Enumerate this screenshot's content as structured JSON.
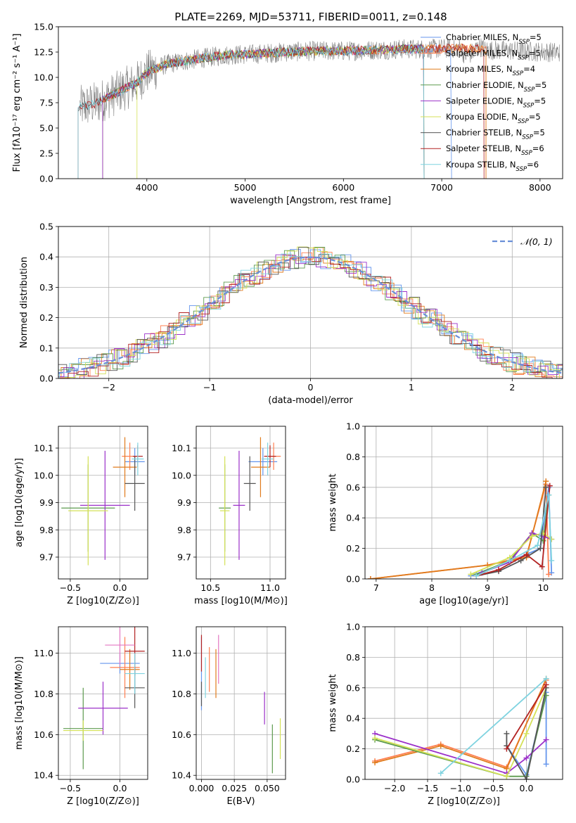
{
  "figure": {
    "title": "PLATE=2269, MJD=53711, FIBERID=0011, z=0.148"
  },
  "colors": {
    "models": [
      "#6495ed",
      "#ff7f50",
      "#e07b1c",
      "#5d9b4f",
      "#9b30c9",
      "#d4e157",
      "#555555",
      "#b22222",
      "#7fd3e0"
    ],
    "data_gray": "#808080",
    "gaussian": "#6a8fd8",
    "grid": "#b0b0b0",
    "extra_pink": "#e377c2"
  },
  "chart_data": [
    {
      "id": "spectrum",
      "type": "line",
      "title": "PLATE=2269, MJD=53711, FIBERID=0011, z=0.148",
      "xlabel": "wavelength [Angstrom, rest frame]",
      "ylabel": "Flux [fλ10⁻¹⁷ erg cm⁻² s⁻¹ A⁻¹]",
      "xlim": [
        3100,
        8230
      ],
      "ylim": [
        0,
        15
      ],
      "xticks": [
        4000,
        5000,
        6000,
        7000,
        8000
      ],
      "yticks": [
        0.0,
        2.5,
        5.0,
        7.5,
        10.0,
        12.5,
        15.0
      ],
      "legend_position": "top-right",
      "legend": [
        "Chabrier MILES, N_SSP=5",
        "Salpeter MILES, N_SSP=5",
        "Kroupa MILES, N_SSP=4",
        "Chabrier ELODIE, N_SSP=5",
        "Salpeter ELODIE, N_SSP=5",
        "Kroupa ELODIE, N_SSP=5",
        "Chabrier STELIB, N_SSP=5",
        "Salpeter STELIB, N_SSP=6",
        "Kroupa STELIB, N_SSP=6"
      ],
      "continuum": {
        "x": [
          3300,
          3500,
          3700,
          3900,
          4000,
          4200,
          4500,
          4800,
          5100,
          5400,
          5700,
          6000,
          6300,
          6600,
          6900,
          7200,
          7500,
          7800,
          8100
        ],
        "y": [
          7.0,
          7.5,
          8.5,
          9.5,
          10.5,
          11.3,
          11.8,
          12.2,
          12.3,
          12.5,
          12.6,
          12.6,
          12.7,
          12.8,
          12.8,
          12.9,
          12.7,
          12.6,
          12.5
        ]
      },
      "model_ranges": [
        [
          3550,
          7100
        ],
        [
          3550,
          7450
        ],
        [
          3550,
          7450
        ],
        [
          3550,
          6820
        ],
        [
          3550,
          6820
        ],
        [
          3900,
          6820
        ],
        [
          3300,
          6820
        ],
        [
          3300,
          7430
        ],
        [
          3300,
          6820
        ]
      ]
    },
    {
      "id": "residuals",
      "type": "line",
      "xlabel": "(data-model)/error",
      "ylabel": "Normed distribution",
      "xlim": [
        -2.5,
        2.5
      ],
      "ylim": [
        0,
        0.5
      ],
      "xticks": [
        -2,
        -1,
        0,
        1,
        2
      ],
      "yticks": [
        0.0,
        0.1,
        0.2,
        0.3,
        0.4,
        0.5
      ],
      "legend": [
        "𝒩(0, 1)"
      ],
      "legend_position": "top-right",
      "series_note": "step histograms for the nine models"
    },
    {
      "id": "age_vs_Z",
      "type": "scatter",
      "xlabel": "Z [log10(Z/Z⊙)]",
      "ylabel": "age  [log10(age/yr)]",
      "xlim": [
        -0.62,
        0.28
      ],
      "ylim": [
        9.62,
        10.18
      ],
      "xticks": [
        -0.5,
        0.0
      ],
      "yticks": [
        9.7,
        9.8,
        9.9,
        10.0,
        10.1
      ],
      "points": [
        {
          "x": 0.15,
          "y": 10.05,
          "xerr": 0.1,
          "yerr": 0.05
        },
        {
          "x": 0.1,
          "y": 10.07,
          "xerr": 0.08,
          "yerr": 0.05
        },
        {
          "x": 0.05,
          "y": 10.03,
          "xerr": 0.12,
          "yerr": 0.11
        },
        {
          "x": -0.32,
          "y": 9.88,
          "xerr": 0.27,
          "yerr": 0.16
        },
        {
          "x": -0.15,
          "y": 9.89,
          "xerr": 0.25,
          "yerr": 0.2
        },
        {
          "x": -0.32,
          "y": 9.87,
          "xerr": 0.2,
          "yerr": 0.2
        },
        {
          "x": 0.15,
          "y": 9.97,
          "xerr": 0.1,
          "yerr": 0.1
        },
        {
          "x": 0.18,
          "y": 10.07,
          "xerr": 0.05,
          "yerr": 0.04
        },
        {
          "x": 0.18,
          "y": 10.06,
          "xerr": 0.06,
          "yerr": 0.06
        }
      ]
    },
    {
      "id": "age_vs_mass",
      "type": "scatter",
      "xlabel": "mass [log10(M/M⊙)]",
      "ylabel": "",
      "xlim": [
        10.38,
        11.13
      ],
      "ylim": [
        9.62,
        10.18
      ],
      "xticks": [
        10.5,
        11.0
      ],
      "yticks": [
        9.7,
        9.8,
        9.9,
        10.0,
        10.1
      ],
      "points": [
        {
          "x": 10.94,
          "y": 10.05,
          "xerr": 0.12,
          "yerr": 0.05
        },
        {
          "x": 11.03,
          "y": 10.07,
          "xerr": 0.06,
          "yerr": 0.05
        },
        {
          "x": 10.92,
          "y": 10.03,
          "xerr": 0.08,
          "yerr": 0.11
        },
        {
          "x": 10.62,
          "y": 9.88,
          "xerr": 0.05,
          "yerr": 0.16
        },
        {
          "x": 10.74,
          "y": 9.89,
          "xerr": 0.05,
          "yerr": 0.2
        },
        {
          "x": 10.62,
          "y": 9.87,
          "xerr": 0.04,
          "yerr": 0.2
        },
        {
          "x": 10.83,
          "y": 9.97,
          "xerr": 0.05,
          "yerr": 0.1
        },
        {
          "x": 11.0,
          "y": 10.07,
          "xerr": 0.05,
          "yerr": 0.04
        },
        {
          "x": 10.98,
          "y": 10.06,
          "xerr": 0.05,
          "yerr": 0.06
        }
      ]
    },
    {
      "id": "weight_vs_age",
      "type": "line",
      "xlabel": "age  [log10(age/yr)]",
      "ylabel": "mass weight",
      "xlim": [
        6.8,
        10.35
      ],
      "ylim": [
        0,
        1.0
      ],
      "xticks": [
        7,
        8,
        9,
        10
      ],
      "yticks": [
        0.0,
        0.2,
        0.4,
        0.6,
        0.8,
        1.0
      ],
      "series": [
        {
          "x": [
            8.7,
            9.5,
            9.95,
            10.1,
            10.15
          ],
          "y": [
            0.02,
            0.13,
            0.2,
            0.6,
            0.04
          ]
        },
        {
          "x": [
            6.9,
            9.0,
            9.7,
            10.05,
            10.1
          ],
          "y": [
            0.0,
            0.09,
            0.15,
            0.62,
            0.03
          ]
        },
        {
          "x": [
            6.9,
            9.0,
            9.7,
            10.05
          ],
          "y": [
            0.0,
            0.09,
            0.14,
            0.64
          ]
        },
        {
          "x": [
            8.8,
            9.4,
            9.8,
            10.0,
            10.1
          ],
          "y": [
            0.03,
            0.12,
            0.3,
            0.25,
            0.55
          ]
        },
        {
          "x": [
            8.9,
            9.4,
            9.8,
            10.0,
            10.15
          ],
          "y": [
            0.04,
            0.11,
            0.3,
            0.28,
            0.26
          ]
        },
        {
          "x": [
            8.7,
            9.4,
            9.8,
            10.0,
            10.15
          ],
          "y": [
            0.03,
            0.14,
            0.28,
            0.3,
            0.26
          ]
        },
        {
          "x": [
            8.8,
            9.2,
            9.6,
            9.95,
            10.05
          ],
          "y": [
            0.02,
            0.05,
            0.12,
            0.2,
            0.6
          ]
        },
        {
          "x": [
            8.8,
            9.2,
            9.7,
            9.98,
            10.12
          ],
          "y": [
            0.02,
            0.06,
            0.16,
            0.08,
            0.61
          ]
        },
        {
          "x": [
            8.8,
            9.4,
            9.9,
            10.1,
            10.15
          ],
          "y": [
            0.02,
            0.12,
            0.22,
            0.55,
            0.12
          ]
        }
      ]
    },
    {
      "id": "mass_vs_Z",
      "type": "scatter",
      "xlabel": "Z [log10(Z/Z⊙)]",
      "ylabel": "mass [log10(M/M⊙)]",
      "xlim": [
        -0.62,
        0.28
      ],
      "ylim": [
        10.38,
        11.13
      ],
      "xticks": [
        -0.5,
        0.0
      ],
      "yticks": [
        10.4,
        10.6,
        10.8,
        11.0
      ],
      "points": [
        {
          "x": 0.0,
          "y": 10.95,
          "xerr": 0.2,
          "yerr": 0.05
        },
        {
          "x": 0.05,
          "y": 10.93,
          "xerr": 0.15,
          "yerr": 0.15
        },
        {
          "x": 0.1,
          "y": 10.92,
          "xerr": 0.1,
          "yerr": 0.1
        },
        {
          "x": -0.37,
          "y": 10.63,
          "xerr": 0.2,
          "yerr": 0.2
        },
        {
          "x": -0.17,
          "y": 10.73,
          "xerr": 0.25,
          "yerr": 0.13
        },
        {
          "x": -0.37,
          "y": 10.62,
          "xerr": 0.2,
          "yerr": 0.05
        },
        {
          "x": 0.15,
          "y": 10.83,
          "xerr": 0.1,
          "yerr": 0.1
        },
        {
          "x": 0.15,
          "y": 11.01,
          "xerr": 0.1,
          "yerr": 0.12
        },
        {
          "x": 0.15,
          "y": 10.9,
          "xerr": 0.1,
          "yerr": 0.1
        },
        {
          "x": 0.0,
          "y": 11.04,
          "xerr": 0.15,
          "yerr": 0.1
        }
      ]
    },
    {
      "id": "mass_vs_ebv",
      "type": "scatter",
      "xlabel": "E(B-V)",
      "ylabel": "",
      "xlim": [
        -0.004,
        0.064
      ],
      "ylim": [
        10.38,
        11.13
      ],
      "xticks": [
        0.0,
        0.025,
        0.05
      ],
      "yticks": [
        10.4,
        10.6,
        10.8,
        11.0
      ],
      "points": [
        {
          "x": 0.0,
          "y": 10.9,
          "yerr": 0.18
        },
        {
          "x": 0.006,
          "y": 10.92,
          "yerr": 0.11
        },
        {
          "x": 0.011,
          "y": 10.9,
          "yerr": 0.12
        },
        {
          "x": 0.054,
          "y": 10.53,
          "yerr": 0.12
        },
        {
          "x": 0.048,
          "y": 10.73,
          "yerr": 0.08
        },
        {
          "x": 0.06,
          "y": 10.58,
          "yerr": 0.1
        },
        {
          "x": 0.0,
          "y": 10.8,
          "yerr": 0.06
        },
        {
          "x": 0.0,
          "y": 11.0,
          "yerr": 0.09
        },
        {
          "x": 0.003,
          "y": 10.88,
          "yerr": 0.1
        },
        {
          "x": 0.013,
          "y": 10.97,
          "yerr": 0.12
        }
      ]
    },
    {
      "id": "weight_vs_Z",
      "type": "line",
      "xlabel": "Z [log10(Z/Z⊙)]",
      "ylabel": "mass weight",
      "xlim": [
        -2.45,
        0.55
      ],
      "ylim": [
        0,
        1.0
      ],
      "xticks": [
        -2.0,
        -1.5,
        -1.0,
        -0.5,
        0.0
      ],
      "yticks": [
        0.0,
        0.2,
        0.4,
        0.6,
        0.8,
        1.0
      ],
      "series": [
        {
          "x": [
            -0.3,
            0.0,
            0.3,
            0.3
          ],
          "y": [
            0.22,
            0.03,
            0.57,
            0.1
          ]
        },
        {
          "x": [
            -2.3,
            -1.3,
            -0.3,
            0.3
          ],
          "y": [
            0.12,
            0.23,
            0.08,
            0.65
          ]
        },
        {
          "x": [
            -2.3,
            -1.3,
            -0.3,
            0.3
          ],
          "y": [
            0.11,
            0.22,
            0.07,
            0.66
          ]
        },
        {
          "x": [
            -2.3,
            -0.3,
            0.0,
            0.3
          ],
          "y": [
            0.26,
            0.02,
            0.02,
            0.55
          ]
        },
        {
          "x": [
            -2.3,
            -0.3,
            0.0,
            0.3
          ],
          "y": [
            0.3,
            0.04,
            0.14,
            0.26
          ]
        },
        {
          "x": [
            -2.3,
            -0.3,
            0.0,
            0.3
          ],
          "y": [
            0.27,
            0.02,
            0.3,
            0.6
          ]
        },
        {
          "x": [
            -0.3,
            -0.3,
            0.0,
            0.3
          ],
          "y": [
            0.3,
            0.22,
            0.0,
            0.6
          ]
        },
        {
          "x": [
            -0.3,
            0.3
          ],
          "y": [
            0.2,
            0.62
          ],
          "extra": true
        },
        {
          "x": [
            -1.3,
            0.3
          ],
          "y": [
            0.04,
            0.66
          ]
        }
      ]
    }
  ]
}
